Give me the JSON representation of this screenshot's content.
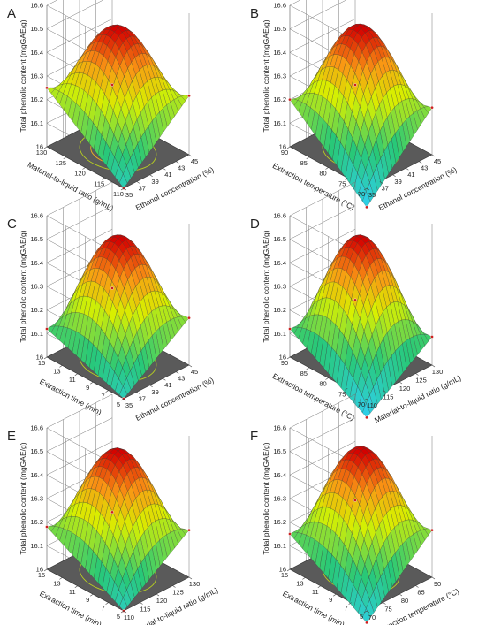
{
  "chart_data": [
    {
      "type": "surface3d",
      "panel_label": "A",
      "zlabel": "Total phenolic content (mgGAE/g)",
      "zticks": [
        "16",
        "16.1",
        "16.2",
        "16.3",
        "16.4",
        "16.5",
        "16.6"
      ],
      "zlim": [
        16.0,
        16.6
      ],
      "xlabel": "Ethanol concentration (%)",
      "xticks": [
        "35",
        "37",
        "39",
        "41",
        "43",
        "45"
      ],
      "xlim": [
        35,
        45
      ],
      "ylabel": "Material-to-liquid ratio (g/mL)",
      "yticks": [
        "110",
        "115",
        "120",
        "125",
        "130"
      ],
      "ylim": [
        110,
        130
      ],
      "surface": {
        "peak": 16.52,
        "corner_x0y0": 16.0,
        "corner_x1y0": 16.25,
        "corner_x0y1": 16.25,
        "corner_x1y1": 16.12
      }
    },
    {
      "type": "surface3d",
      "panel_label": "B",
      "zlabel": "Total phenolic content (mgGAE/g)",
      "zticks": [
        "16",
        "16.1",
        "16.2",
        "16.3",
        "16.4",
        "16.5",
        "16.6"
      ],
      "zlim": [
        16.0,
        16.6
      ],
      "xlabel": "Ethanol concentration (%)",
      "xticks": [
        "35",
        "37",
        "39",
        "41",
        "43",
        "45"
      ],
      "xlim": [
        35,
        45
      ],
      "ylabel": "Extraction temperature (°C)",
      "yticks": [
        "70",
        "75",
        "80",
        "85",
        "90"
      ],
      "ylim": [
        70,
        90
      ],
      "surface": {
        "peak": 16.52,
        "corner_x0y0": 15.92,
        "corner_x1y0": 16.2,
        "corner_x0y1": 16.2,
        "corner_x1y1": 16.12
      }
    },
    {
      "type": "surface3d",
      "panel_label": "C",
      "zlabel": "Total phenolic content (mgGAE/g)",
      "zticks": [
        "16",
        "16.1",
        "16.2",
        "16.3",
        "16.4",
        "16.5",
        "16.6"
      ],
      "zlim": [
        16.0,
        16.6
      ],
      "xlabel": "Ethanol concentration (%)",
      "xticks": [
        "35",
        "37",
        "39",
        "41",
        "43",
        "45"
      ],
      "xlim": [
        35,
        45
      ],
      "ylabel": "Extraction time (min)",
      "yticks": [
        "5",
        "7",
        "9",
        "11",
        "13",
        "15"
      ],
      "ylim": [
        5,
        15
      ],
      "surface": {
        "peak": 16.52,
        "corner_x0y0": 16.0,
        "corner_x1y0": 16.2,
        "corner_x0y1": 16.12,
        "corner_x1y1": 16.15
      }
    },
    {
      "type": "surface3d",
      "panel_label": "D",
      "zlabel": "Total phenolic content (mgGAE/g)",
      "zticks": [
        "16",
        "16.1",
        "16.2",
        "16.3",
        "16.4",
        "16.5",
        "16.6"
      ],
      "zlim": [
        16.0,
        16.6
      ],
      "xlabel": "Material-to-liquid ratio (g/mL)",
      "xticks": [
        "110",
        "115",
        "120",
        "125",
        "130"
      ],
      "xlim": [
        110,
        130
      ],
      "ylabel": "Extraction temperature (°C)",
      "yticks": [
        "70",
        "75",
        "80",
        "85",
        "90"
      ],
      "ylim": [
        70,
        90
      ],
      "surface": {
        "peak": 16.52,
        "corner_x0y0": 15.92,
        "corner_x1y0": 16.12,
        "corner_x0y1": 16.12,
        "corner_x1y1": 16.1
      }
    },
    {
      "type": "surface3d",
      "panel_label": "E",
      "zlabel": "Total phenolic content (mgGAE/g)",
      "zticks": [
        "16",
        "16.1",
        "16.2",
        "16.3",
        "16.4",
        "16.5",
        "16.6"
      ],
      "zlim": [
        16.0,
        16.6
      ],
      "xlabel": "Material-to-liquid ratio (g/mL)",
      "xticks": [
        "110",
        "115",
        "120",
        "125",
        "130"
      ],
      "xlim": [
        110,
        130
      ],
      "ylabel": "Extraction time (min)",
      "yticks": [
        "5",
        "7",
        "9",
        "11",
        "13",
        "15"
      ],
      "ylim": [
        5,
        15
      ],
      "surface": {
        "peak": 16.52,
        "corner_x0y0": 16.0,
        "corner_x1y0": 16.2,
        "corner_x0y1": 16.18,
        "corner_x1y1": 16.1
      }
    },
    {
      "type": "surface3d",
      "panel_label": "F",
      "zlabel": "Total phenolic content (mgGAE/g)",
      "zticks": [
        "16",
        "16.1",
        "16.2",
        "16.3",
        "16.4",
        "16.5",
        "16.6"
      ],
      "zlim": [
        16.0,
        16.6
      ],
      "xlabel": "Extraction temperature (°C)",
      "xticks": [
        "70",
        "75",
        "80",
        "85",
        "90"
      ],
      "xlim": [
        70,
        90
      ],
      "ylabel": "Extraction time (min)",
      "yticks": [
        "5",
        "7",
        "9",
        "11",
        "13",
        "15"
      ],
      "ylim": [
        5,
        15
      ],
      "surface": {
        "peak": 16.52,
        "corner_x0y0": 15.95,
        "corner_x1y0": 16.2,
        "corner_x0y1": 16.15,
        "corner_x1y1": 16.15
      }
    }
  ],
  "colors": {
    "surface_low": "#2fd0f0",
    "surface_mid": "#d8f000",
    "surface_high": "#d40000",
    "floor": "#5a5a5a",
    "contour": "#f0b020"
  }
}
